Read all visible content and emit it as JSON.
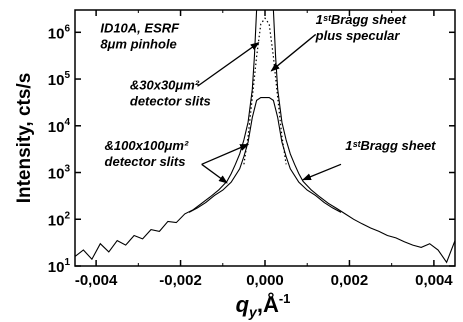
{
  "chart_data": {
    "type": "line",
    "xlabel": {
      "symbol": "q",
      "sub": "y",
      "unit": "Å",
      "sup": "-1"
    },
    "ylabel": "Intensity, cts/s",
    "xlim": [
      -0.0045,
      0.0045
    ],
    "ylim": [
      10,
      3000000
    ],
    "y_scale": "log",
    "x_ticks": [
      {
        "value": -0.004,
        "label": "-0,004"
      },
      {
        "value": -0.002,
        "label": "-0,002"
      },
      {
        "value": 0.0,
        "label": "0,000"
      },
      {
        "value": 0.002,
        "label": "0,002"
      },
      {
        "value": 0.004,
        "label": "0,004"
      }
    ],
    "y_ticks": [
      {
        "value": 10,
        "base": "10",
        "exp": "1"
      },
      {
        "value": 100,
        "base": "10",
        "exp": "2"
      },
      {
        "value": 1000,
        "base": "10",
        "exp": "3"
      },
      {
        "value": 10000,
        "base": "10",
        "exp": "4"
      },
      {
        "value": 100000,
        "base": "10",
        "exp": "5"
      },
      {
        "value": 1000000,
        "base": "10",
        "exp": "6"
      }
    ],
    "grid": false,
    "series": [
      {
        "style": "solid",
        "x": [
          -0.0045,
          -0.0043,
          -0.0041,
          -0.0039,
          -0.0037,
          -0.0035,
          -0.0033,
          -0.0031,
          -0.0029,
          -0.0027,
          -0.0025,
          -0.0023,
          -0.0021,
          -0.0019,
          -0.0017,
          -0.0015,
          -0.0013,
          -0.0011,
          -0.0009,
          -0.0008,
          -0.0007,
          -0.0006,
          -0.0005,
          -0.0004,
          -0.0003,
          -0.00025,
          -0.0002,
          -0.00015,
          -0.0001,
          -5e-05,
          0.0,
          5e-05,
          0.0001,
          0.00015,
          0.0002,
          0.00025,
          0.0003,
          0.0004,
          0.0005,
          0.0006,
          0.0007,
          0.0008,
          0.0009,
          0.0011,
          0.0013,
          0.0015,
          0.0017,
          0.0019,
          0.0021,
          0.0023,
          0.0025,
          0.0027,
          0.0029,
          0.0031,
          0.0033,
          0.0035,
          0.0037,
          0.0039,
          0.0041,
          0.0043,
          0.0045
        ],
        "y": [
          16,
          22,
          14,
          30,
          20,
          35,
          28,
          45,
          38,
          60,
          55,
          90,
          85,
          130,
          160,
          220,
          300,
          420,
          650,
          950,
          1500,
          2500,
          5000,
          12000,
          60000,
          300000,
          3000000,
          3000000,
          3000000,
          3000000,
          3000000,
          3000000,
          3000000,
          3000000,
          3000000,
          300000,
          60000,
          12000,
          5000,
          2500,
          1500,
          950,
          650,
          420,
          300,
          220,
          170,
          130,
          100,
          80,
          65,
          55,
          45,
          40,
          33,
          28,
          25,
          30,
          22,
          12,
          35
        ]
      },
      {
        "style": "solid",
        "x": [
          -0.0018,
          -0.0016,
          -0.0014,
          -0.0012,
          -0.001,
          -0.0008,
          -0.0006,
          -0.0005,
          -0.0004,
          -0.0003,
          -0.0002,
          -0.0001,
          0.0,
          0.0001,
          0.0002,
          0.0003,
          0.0004,
          0.0005,
          0.0006,
          0.0008,
          0.001,
          0.0012,
          0.0014,
          0.0016,
          0.0018
        ],
        "y": [
          140,
          175,
          230,
          320,
          420,
          620,
          1200,
          2200,
          4500,
          15000,
          35000,
          40000,
          40000,
          40000,
          35000,
          15000,
          4500,
          2200,
          1200,
          620,
          420,
          320,
          230,
          175,
          140
        ]
      },
      {
        "style": "dotted",
        "x": [
          -0.0005,
          -0.0004,
          -0.0003,
          -0.0002,
          -0.0001,
          0.0,
          0.0001,
          0.0002,
          0.0003,
          0.0004,
          0.0005
        ],
        "y": [
          1500,
          6000,
          40000,
          300000,
          1500000,
          2000000,
          1500000,
          300000,
          40000,
          6000,
          1500
        ]
      }
    ],
    "annotations": [
      {
        "lines": [
          "ID10A, ESRF",
          "8μm pinhole"
        ],
        "at": [
          -0.0039,
          1000000
        ]
      },
      {
        "lines": [
          "1ˢᵗBragg sheet",
          "plus specular"
        ],
        "at": [
          0.0012,
          1500000
        ]
      },
      {
        "lines": [
          "&30x30μm²",
          "detector slits"
        ],
        "at": [
          -0.0032,
          60000
        ]
      },
      {
        "lines": [
          "&100x100μm²",
          "detector slits"
        ],
        "at": [
          -0.0038,
          3000
        ]
      },
      {
        "lines": [
          "1ˢᵗBragg sheet"
        ],
        "at": [
          0.0019,
          3000
        ]
      }
    ],
    "arrows": [
      {
        "from": [
          -0.0016,
          70000
        ],
        "to": [
          -0.00015,
          600000
        ]
      },
      {
        "from": [
          0.0012,
          900000
        ],
        "to": [
          0.00015,
          150000
        ]
      },
      {
        "from": [
          -0.0015,
          1500
        ],
        "to": [
          -0.0009,
          600
        ]
      },
      {
        "from": [
          -0.0015,
          1500
        ],
        "to": [
          -0.0004,
          4000
        ]
      },
      {
        "from": [
          0.0018,
          1500
        ],
        "to": [
          0.0009,
          700
        ]
      }
    ]
  }
}
